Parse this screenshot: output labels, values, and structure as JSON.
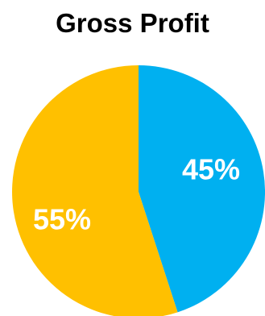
{
  "chart_data": {
    "type": "pie",
    "title": "Gross Profit",
    "categories": [
      "",
      ""
    ],
    "values": [
      45,
      55
    ],
    "labels": [
      "45%",
      "55%"
    ],
    "colors": [
      "#00B0F0",
      "#FFC000"
    ],
    "start_angle_deg": 0,
    "direction": "clockwise",
    "legend": "none"
  }
}
